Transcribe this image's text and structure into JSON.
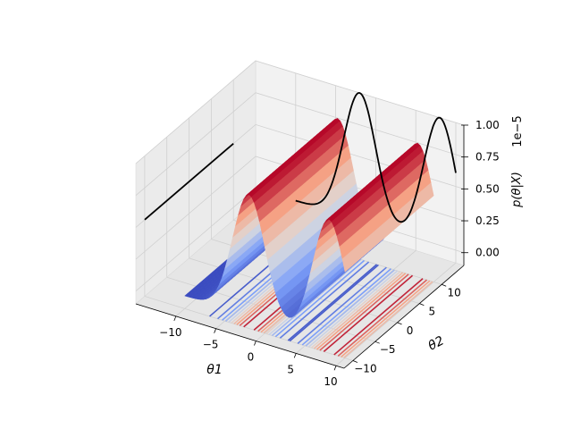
{
  "chart_data": {
    "type": "surface",
    "description_kind": "3d-surface-with-contour-projection",
    "x_label": "θ1",
    "y_label": "θ2",
    "z_label": "p(θ|X)",
    "z_offset_label": "1e−5",
    "x_ticks": [
      "−10",
      "−5",
      "0",
      "5",
      "10"
    ],
    "y_ticks": [
      "−10",
      "−5",
      "0",
      "5",
      "10"
    ],
    "z_ticks": [
      "0.00",
      "0.25",
      "0.50",
      "0.75",
      "1.00"
    ],
    "x_range": [
      -15,
      11
    ],
    "y_range": [
      -12,
      15
    ],
    "z_range": [
      -0.1,
      1.0
    ],
    "surface": {
      "x_extent": [
        -10,
        10
      ],
      "y_extent": [
        -10,
        10
      ],
      "peak_x": [
        -2,
        8
      ],
      "peak_width": 2,
      "peak_height": 0.95,
      "colormap": "coolwarm"
    },
    "contour_projection": {
      "plane": "z-bottom",
      "levels": 10
    },
    "marginal_theta1": {
      "plane": "back-y",
      "peaks_at": [
        -2,
        8
      ],
      "max": 1.0
    },
    "marginal_theta2": {
      "plane": "back-x",
      "level": 0.5,
      "constant": true
    },
    "grid": true,
    "colors": {
      "pane_back": "#f2f2f2",
      "pane_side": "#ebebeb",
      "pane_floor": "#e6e6e6",
      "grid": "#d9d9d9",
      "cool": "#3b4cc0",
      "warm": "#b40426"
    }
  }
}
